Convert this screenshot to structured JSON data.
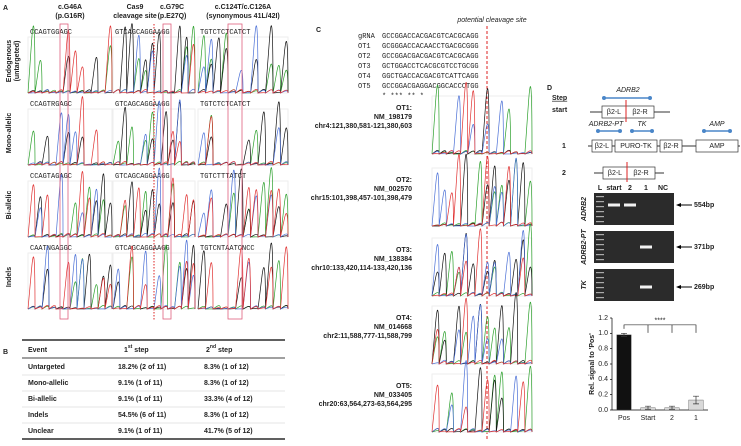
{
  "panels": {
    "A": {
      "label": "A",
      "columns": [
        [
          "c.G46A",
          "(p.G16R)"
        ],
        [
          "Cas9",
          "cleavage site"
        ],
        [
          "c.G79C",
          "(p.E27Q)"
        ],
        [
          "c.C124T/c.C126A",
          "(synonymous 41L/42I)"
        ]
      ],
      "rows": [
        [
          "Endogenous",
          "(untargeted)"
        ],
        [
          "Mono-allelic"
        ],
        [
          "Bi-allelic"
        ],
        [
          "Indels"
        ]
      ],
      "sequences": [
        [
          "CCAGTGGAGC",
          "GTCAGCAGGAAGG",
          "TGTCTCTCATCT"
        ],
        [
          "CCAGTRGAGC",
          "GTCAGCAGGAAGG",
          "TGTCTCTCATCT"
        ],
        [
          "CCAGTAGAGC",
          "GTCAGCAGGAAGG",
          "TGTCTTTATCT"
        ],
        [
          "CAATNGAGGC",
          "GTCAGCAGGAAGG",
          "TGTCNTAATCNCC"
        ]
      ]
    },
    "B": {
      "label": "B",
      "header": [
        "Event",
        {
          "n": "1",
          "sup": "st",
          "rest": " step"
        },
        {
          "n": "2",
          "sup": "nd",
          "rest": " step"
        }
      ],
      "rows": [
        [
          "Untargeted",
          "18.2% (2 of 11)",
          "8.3% (1 of 12)"
        ],
        [
          "Mono-allelic",
          "9.1% (1 of 11)",
          "8.3% (1 of 12)"
        ],
        [
          "Bi-allelic",
          "9.1% (1 of 11)",
          "33.3% (4 of 12)"
        ],
        [
          "Indels",
          "54.5% (6 of 11)",
          "8.3% (1 of 12)"
        ],
        [
          "Unclear",
          "9.1% (1 of 11)",
          "41.7% (5 of 12)"
        ]
      ]
    },
    "C": {
      "label": "C",
      "annotation": "potential cleavage site",
      "alignment": [
        {
          "name": "gRNA",
          "seq": "GCCGGACCACGACGTCACGCAGG"
        },
        {
          "name": "OT1",
          "seq": "GCGGGACCACAACCTGACGCGGG"
        },
        {
          "name": "OT2",
          "seq": "GCCGGACGACGACGTCACGCAGG"
        },
        {
          "name": "OT3",
          "seq": "GCTGGACCTCACGCGTCCTGCGG"
        },
        {
          "name": "OT4",
          "seq": "GGCTGACCACGACGTCATTCAGG"
        },
        {
          "name": "OT5",
          "seq": "GCCGGACGAGGACGGCACCCTGG"
        }
      ],
      "conservation": "*    ***     **     *",
      "hits": [
        {
          "id": "OT1:",
          "gene": "NM_198179",
          "locus": "chr4:121,380,581-121,380,603"
        },
        {
          "id": "OT2:",
          "gene": "NM_002570",
          "locus": "chr15:101,398,457-101,398,479"
        },
        {
          "id": "OT3:",
          "gene": "NM_138384",
          "locus": "chr10:133,420,114-133,420,136"
        },
        {
          "id": "OT4:",
          "gene": "NM_014668",
          "locus": "chr2:11,588,777-11,588,799"
        },
        {
          "id": "OT5:",
          "gene": "NM_033405",
          "locus": "chr20:63,564,273-63,564,295"
        }
      ]
    },
    "D": {
      "label": "D",
      "step_header": "Step",
      "steps": [
        "start",
        "1",
        "2"
      ],
      "diagram": {
        "gene": "ADRB2",
        "left_arm": "β2-L",
        "right_arm": "β2-R",
        "primer1": "ADRB2-PT",
        "primer2": "TK",
        "primer3": "AMP",
        "cassette": "PURO-TK",
        "marker": "AMP"
      },
      "gel": {
        "lanes": [
          "L",
          "start",
          "2",
          "1",
          "NC"
        ],
        "rows": [
          "ADRB2",
          "ADRB2-PT",
          "TK"
        ],
        "sizes": [
          "554bp",
          "371bp",
          "269bp"
        ]
      }
    }
  },
  "chart_data": {
    "type": "bar",
    "ylabel": "Rel. signal to 'Pos'",
    "categories": [
      "Pos",
      "Start",
      "2",
      "1"
    ],
    "values": [
      0.98,
      0.03,
      0.03,
      0.13
    ],
    "errors": [
      0.02,
      0.02,
      0.02,
      0.05
    ],
    "colors": [
      "#111111",
      "#d9d9d9",
      "#d9d9d9",
      "#d9d9d9"
    ],
    "ylim": [
      0,
      1.2
    ],
    "yticks": [
      {
        "value": 0,
        "label": "0.0"
      },
      {
        "value": 0.2,
        "label": "0.2"
      },
      {
        "value": 0.4,
        "label": "0.4"
      },
      {
        "value": 0.6,
        "label": "0.6"
      },
      {
        "value": 0.8,
        "label": "0.8"
      },
      {
        "value": 1,
        "label": "1.0"
      },
      {
        "value": 1.2,
        "label": "1.2"
      }
    ],
    "annotation": "****"
  }
}
